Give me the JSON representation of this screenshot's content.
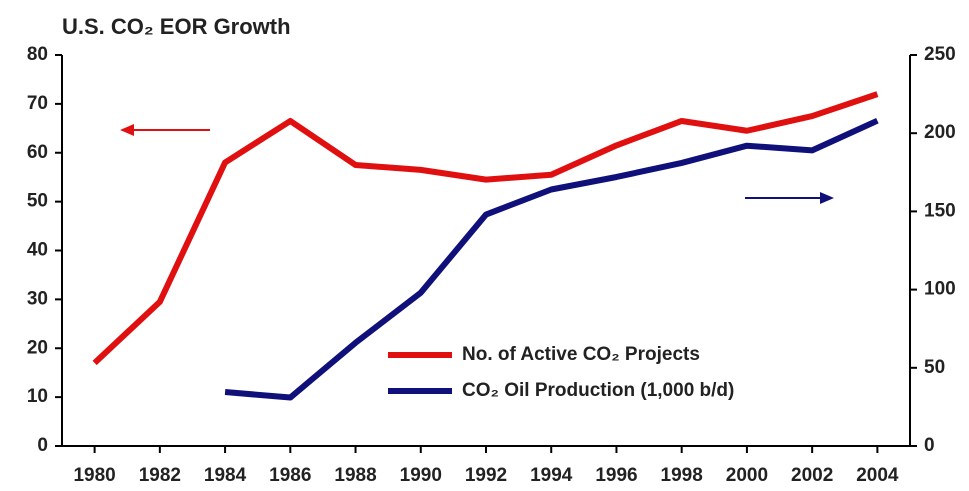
{
  "chart_data": {
    "type": "line",
    "title": "U.S. CO₂ EOR Growth",
    "x": [
      1980,
      1982,
      1984,
      1986,
      1988,
      1990,
      1992,
      1994,
      1996,
      1998,
      2000,
      2002,
      2004
    ],
    "xlim": [
      1979,
      2005
    ],
    "xticks": [
      1980,
      1982,
      1984,
      1986,
      1988,
      1990,
      1992,
      1994,
      1996,
      1998,
      2000,
      2002,
      2004
    ],
    "ylim": [
      0,
      80
    ],
    "yticks": [
      0,
      10,
      20,
      30,
      40,
      50,
      60,
      70,
      80
    ],
    "y2lim": [
      0,
      250
    ],
    "y2ticks": [
      0,
      50,
      100,
      150,
      200,
      250
    ],
    "series": [
      {
        "name": "No. of Active CO₂ Projects",
        "color": "#e01010",
        "values": [
          17,
          29.5,
          58,
          66.5,
          57.5,
          56.5,
          54.5,
          55.5,
          61.5,
          66.5,
          64.5,
          67.5,
          72
        ]
      },
      {
        "name": "CO₂ Oil Production (1,000 b/d)",
        "color": "#10107a",
        "axis": "y2",
        "values": [
          null,
          null,
          34.5,
          31,
          66,
          98,
          148,
          164,
          172,
          181,
          192,
          189,
          208
        ]
      }
    ]
  }
}
